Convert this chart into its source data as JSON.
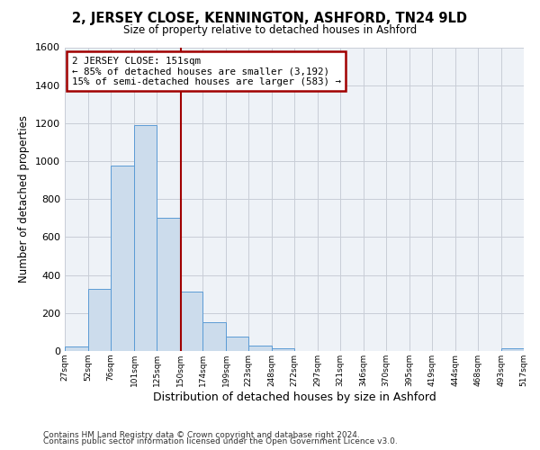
{
  "title": "2, JERSEY CLOSE, KENNINGTON, ASHFORD, TN24 9LD",
  "subtitle": "Size of property relative to detached houses in Ashford",
  "xlabel": "Distribution of detached houses by size in Ashford",
  "ylabel": "Number of detached properties",
  "bar_edges": [
    27,
    52,
    76,
    101,
    125,
    150,
    174,
    199,
    223,
    248,
    272,
    297,
    321,
    346,
    370,
    395,
    419,
    444,
    468,
    493,
    517
  ],
  "bar_heights": [
    25,
    325,
    975,
    1190,
    700,
    315,
    150,
    75,
    30,
    15,
    0,
    0,
    0,
    0,
    0,
    0,
    0,
    0,
    0,
    15
  ],
  "bar_color": "#ccdcec",
  "bar_edge_color": "#5b9bd5",
  "vline_x": 151,
  "vline_color": "#a00000",
  "annotation_title": "2 JERSEY CLOSE: 151sqm",
  "annotation_line1": "← 85% of detached houses are smaller (3,192)",
  "annotation_line2": "15% of semi-detached houses are larger (583) →",
  "annotation_box_color": "#a00000",
  "xlim_left": 27,
  "xlim_right": 517,
  "ylim_top": 1600,
  "tick_labels": [
    "27sqm",
    "52sqm",
    "76sqm",
    "101sqm",
    "125sqm",
    "150sqm",
    "174sqm",
    "199sqm",
    "223sqm",
    "248sqm",
    "272sqm",
    "297sqm",
    "321sqm",
    "346sqm",
    "370sqm",
    "395sqm",
    "419sqm",
    "444sqm",
    "468sqm",
    "493sqm",
    "517sqm"
  ],
  "tick_positions": [
    27,
    52,
    76,
    101,
    125,
    150,
    174,
    199,
    223,
    248,
    272,
    297,
    321,
    346,
    370,
    395,
    419,
    444,
    468,
    493,
    517
  ],
  "yticks": [
    0,
    200,
    400,
    600,
    800,
    1000,
    1200,
    1400,
    1600
  ],
  "footer1": "Contains HM Land Registry data © Crown copyright and database right 2024.",
  "footer2": "Contains public sector information licensed under the Open Government Licence v3.0.",
  "bg_color": "#eef2f7",
  "grid_color": "#c8cdd6"
}
